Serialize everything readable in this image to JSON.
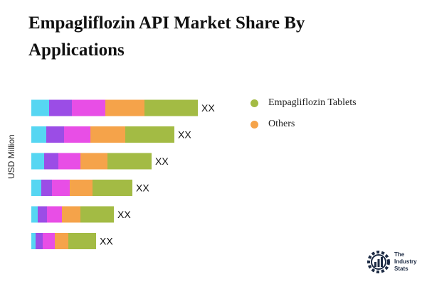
{
  "title": "Empagliflozin API Market Share By Applications",
  "chart_data": {
    "type": "bar",
    "orientation": "horizontal",
    "stacked": true,
    "ylabel": "USD Million",
    "categories": [
      "",
      "",
      "",
      "",
      "",
      ""
    ],
    "data_labels": [
      "XX",
      "XX",
      "XX",
      "XX",
      "XX",
      "XX"
    ],
    "segment_colors": [
      "#56d6f2",
      "#9b4de6",
      "#e84ee6",
      "#f5a34a",
      "#a3bb44"
    ],
    "series": [
      {
        "name": "",
        "values": [
          25,
          21,
          18,
          14,
          9,
          6
        ]
      },
      {
        "name": "",
        "values": [
          32,
          25,
          20,
          15,
          13,
          10
        ]
      },
      {
        "name": "",
        "values": [
          47,
          37,
          31,
          25,
          21,
          17
        ]
      },
      {
        "name": "",
        "values": [
          55,
          49,
          38,
          32,
          26,
          19
        ]
      },
      {
        "name": "",
        "values": [
          75,
          69,
          62,
          56,
          47,
          39
        ]
      }
    ],
    "xlim": [
      0,
      280
    ],
    "grid": false,
    "legend_position": "right"
  },
  "legend": [
    {
      "label": "Empagliflozin Tablets",
      "color": "#a3bb44"
    },
    {
      "label": "Others",
      "color": "#f5a34a"
    }
  ],
  "logo": {
    "line1": "The",
    "line2": "Industry",
    "line3": "Stats"
  }
}
